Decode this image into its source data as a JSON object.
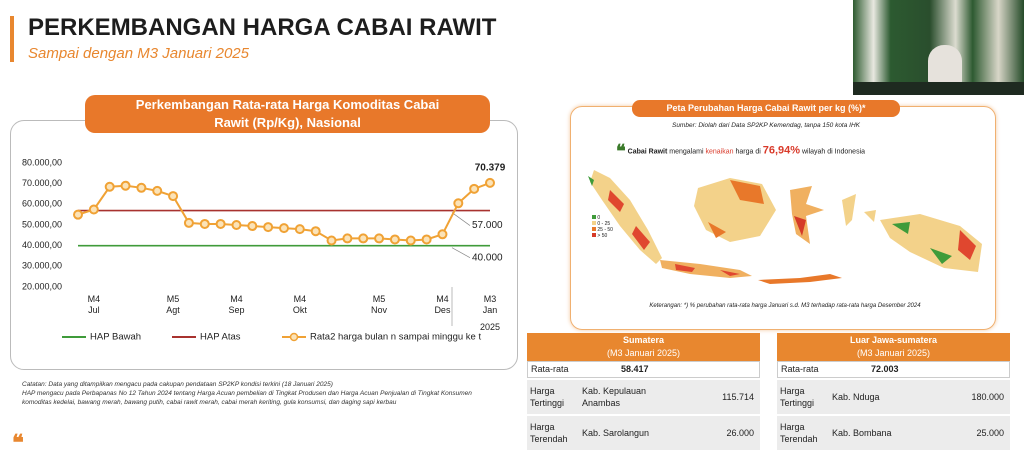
{
  "header": {
    "title": "PERKEMBANGAN HARGA CABAI RAWIT",
    "subtitle": "Sampai dengan M3 Januari 2025"
  },
  "chart_data": {
    "type": "line",
    "title": "Perkembangan Rata-rata Harga Komoditas Cabai Rawit (Rp/Kg), Nasional",
    "categories": [
      null,
      "M4\nJul",
      null,
      null,
      null,
      null,
      "M5\nAgt",
      null,
      null,
      null,
      "M4\nSep",
      null,
      null,
      null,
      "M4\nOkt",
      null,
      null,
      null,
      null,
      "M5\nNov",
      null,
      null,
      null,
      "M4\nDes",
      null,
      null,
      "M3\nJan"
    ],
    "year_label": "2025",
    "ylim": [
      20000,
      80000
    ],
    "yticks": [
      {
        "value": 20000,
        "label": "20.000,00"
      },
      {
        "value": 30000,
        "label": "30.000,00"
      },
      {
        "value": 40000,
        "label": "40.000,00"
      },
      {
        "value": 50000,
        "label": "50.000,00"
      },
      {
        "value": 60000,
        "label": "60.000,00"
      },
      {
        "value": 70000,
        "label": "70.000,00"
      },
      {
        "value": 80000,
        "label": "80.000,00"
      }
    ],
    "grid": false,
    "series": [
      {
        "name": "HAP Bawah",
        "color": "#3f9b3a",
        "marker": false,
        "values": [
          40000,
          40000,
          40000,
          40000,
          40000,
          40000,
          40000,
          40000,
          40000,
          40000,
          40000,
          40000,
          40000,
          40000,
          40000,
          40000,
          40000,
          40000,
          40000,
          40000,
          40000,
          40000,
          40000,
          40000,
          40000,
          40000,
          40000
        ],
        "value_labels": [
          null,
          null,
          null,
          null,
          null,
          null,
          null,
          null,
          null,
          null,
          null,
          null,
          null,
          null,
          null,
          null,
          null,
          null,
          null,
          null,
          null,
          null,
          null,
          null,
          null,
          null,
          "40.000"
        ]
      },
      {
        "name": "HAP Atas",
        "color": "#a8322f",
        "marker": false,
        "values": [
          57000,
          57000,
          57000,
          57000,
          57000,
          57000,
          57000,
          57000,
          57000,
          57000,
          57000,
          57000,
          57000,
          57000,
          57000,
          57000,
          57000,
          57000,
          57000,
          57000,
          57000,
          57000,
          57000,
          57000,
          57000,
          57000,
          57000
        ],
        "value_labels": [
          null,
          null,
          null,
          null,
          null,
          null,
          null,
          null,
          null,
          null,
          null,
          null,
          null,
          null,
          null,
          null,
          null,
          null,
          null,
          null,
          null,
          null,
          null,
          null,
          null,
          null,
          "57.000"
        ]
      },
      {
        "name": "Rata2 harga bulan n sampai minggu ke t",
        "color": "#f0a235",
        "marker": true,
        "values": [
          55000,
          57500,
          68500,
          69000,
          68000,
          66500,
          64000,
          51000,
          50500,
          50500,
          50000,
          49500,
          49000,
          48500,
          48000,
          47000,
          42500,
          43500,
          43500,
          43500,
          43000,
          42500,
          43000,
          45500,
          60500,
          67500,
          70379
        ],
        "value_labels": [
          null,
          null,
          null,
          null,
          null,
          null,
          null,
          null,
          null,
          null,
          null,
          null,
          null,
          null,
          null,
          null,
          null,
          null,
          null,
          null,
          null,
          null,
          null,
          null,
          null,
          null,
          "70.379"
        ]
      }
    ]
  },
  "notes": [
    "Catatan: Data yang ditampilkan mengacu pada cakupan pendataan SP2KP kondisi terkini (18 Januari 2025)",
    "HAP mengacu pada Perbapanas No 12 Tahun 2024 tentang Harga Acuan pembelian di Tingkat Produsen dan Harga Acuan Penjualan di Tingkat Konsumen komoditas kedelai, bawang merah, bawang putih, cabai rawit merah, cabai merah keriting, gula konsumsi, dan daging sapi kerbau"
  ],
  "map": {
    "title": "Peta Perubahan Harga Cabai Rawit per kg (%)*",
    "source": "Sumber: Diolah dari Data SP2KP Kemendag, tanpa 150 kota IHK",
    "statement": [
      "Cabai Rawit",
      "mengalami",
      "kenaikan",
      "harga di",
      "76,94%",
      "wilayah di Indonesia"
    ],
    "legend": [
      "0",
      "0 - 25",
      "25 - 50",
      "> 50"
    ],
    "note": "Keterangan: *) % perubahan rata-rata harga Januari s.d. M3 terhadap rata-rata harga Desember 2024"
  },
  "tables": [
    {
      "title": "Sumatera",
      "subtitle": "(M3 Januari 2025)",
      "average_label": "Rata-rata",
      "average": "58.417",
      "rows": [
        {
          "label": "Harga\nTertinggi",
          "region": "Kab. Kepulauan\nAnambas",
          "value": "115.714"
        },
        {
          "label": "Harga\nTerendah",
          "region": "Kab. Sarolangun",
          "value": "26.000"
        }
      ]
    },
    {
      "title": "Luar Jawa-sumatera",
      "subtitle": "(M3 Januari 2025)",
      "average_label": "Rata-rata",
      "average": "72.003",
      "rows": [
        {
          "label": "Harga\nTertinggi",
          "region": "Kab. Nduga",
          "value": "180.000"
        },
        {
          "label": "Harga\nTerendah",
          "region": "Kab. Bombana",
          "value": "25.000"
        }
      ]
    }
  ]
}
